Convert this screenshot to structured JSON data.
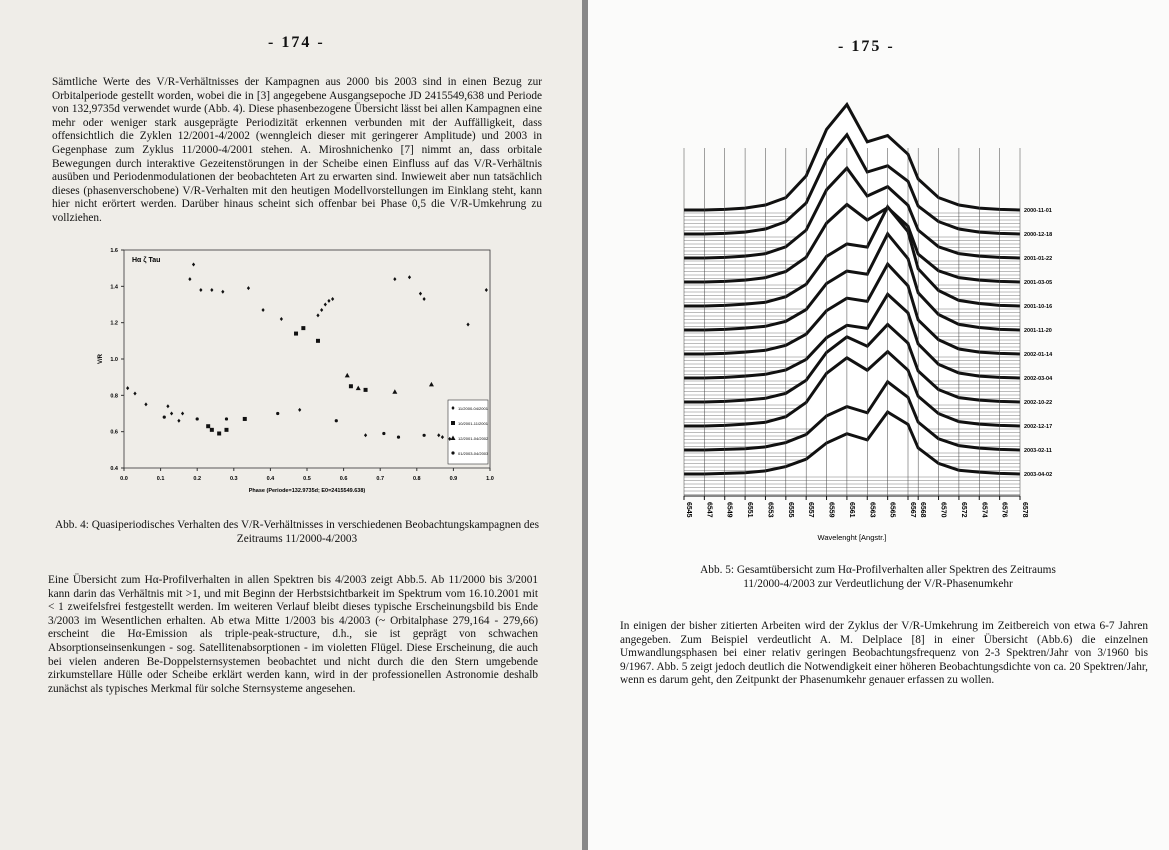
{
  "left": {
    "page_number": "- 174 -",
    "paragraph_1": "Sämtliche Werte des V/R-Verhältnisses der Kampagnen aus 2000 bis 2003 sind in einen Bezug zur Orbitalperiode gestellt worden, wobei die in [3] angegebene Ausgangsepoche JD 2415549,638 und Periode von 132,9735d verwendet wurde (Abb. 4). Diese phasenbezogene Übersicht lässt bei allen Kampagnen eine mehr oder weniger stark ausgeprägte Periodizität erkennen verbunden mit der Auffälligkeit, dass offensichtlich die Zyklen 12/2001-4/2002 (wenngleich dieser mit geringerer Amplitude) und 2003 in Gegenphase zum Zyklus 11/2000-4/2001 stehen. A. Miroshnichenko [7] nimmt an, dass orbitale Bewegungen durch interaktive Gezeitenstörungen in der Scheibe einen Einfluss auf das V/R-Verhältnis ausüben und Periodenmodulationen der beobachteten Art zu erwarten sind. Inwieweit aber nun tatsächlich dieses (phasenverschobene) V/R-Verhalten mit den heutigen Modellvorstellungen im Einklang steht, kann hier nicht erörtert werden. Darüber hinaus scheint sich offenbar bei Phase 0,5 die V/R-Umkehrung zu vollziehen.",
    "caption": "Abb. 4: Quasiperiodisches Verhalten des V/R-Verhältnisses in verschiedenen Beobachtungskampagnen des Zeitraums 11/2000-4/2003",
    "paragraph_2": "Eine Übersicht zum Hα-Profilverhalten in allen Spektren bis 4/2003 zeigt Abb.5. Ab 11/2000 bis 3/2001 kann darin das Verhältnis mit >1, und mit Beginn der Herbstsichtbarkeit im Spektrum vom 16.10.2001 mit < 1 zweifelsfrei festgestellt werden. Im weiteren Verlauf bleibt dieses typische Erscheinungsbild bis Ende 3/2003 im Wesentlichen erhalten. Ab etwa Mitte 1/2003 bis 4/2003 (~ Orbitalphase 279,164 - 279,66) erscheint die Hα-Emission als triple-peak-structure, d.h., sie ist geprägt von schwachen Absorptionseinsenkungen - sog. Satellitenabsorptionen - im violetten Flügel. Diese Erscheinung, die auch bei vielen anderen Be-Doppelsternsystemen beobachtet und nicht durch die den Stern umgebende zirkumstellare Hülle oder Scheibe erklärt werden kann, wird in der professionellen Astronomie deshalb zunächst als typisches Merkmal für solche Sternsysteme angesehen."
  },
  "right": {
    "page_number": "- 175 -",
    "caption": "Abb. 5: Gesamtübersicht zum Hα-Profilverhalten aller Spektren des Zeitraums 11/2000-4/2003 zur Verdeutlichung der V/R-Phasenumkehr",
    "paragraph": "In einigen der bisher zitierten Arbeiten wird der Zyklus der V/R-Umkehrung im Zeitbereich von etwa 6-7 Jahren angegeben. Zum Beispiel verdeutlicht A. M. Delplace [8] in einer Übersicht (Abb.6) die einzelnen Umwandlungsphasen bei einer relativ geringen Beobachtungsfrequenz von 2-3 Spektren/Jahr von 3/1960 bis 9/1967. Abb. 5 zeigt jedoch deutlich die Notwendigkeit einer höheren Beobachtungsdichte von ca. 20 Spektren/Jahr, wenn es darum geht, den Zeitpunkt der Phasenumkehr genauer erfassen zu wollen."
  },
  "chart_data": [
    {
      "type": "scatter",
      "title": "Hα ζ Tau",
      "y_label": "V/R",
      "x_label": "Phase (Periode=132.9735d; E0=2415549.638)",
      "xlim": [
        0,
        1
      ],
      "ylim": [
        0.4,
        1.6
      ],
      "xticks": [
        {
          "value": 0,
          "label": "0.0"
        },
        0.1,
        0.2,
        0.3,
        0.4,
        0.5,
        0.6,
        0.7,
        0.8,
        0.9,
        {
          "value": 1,
          "label": "1.0"
        }
      ],
      "yticks": [
        0.4,
        0.6,
        0.8,
        {
          "value": 1,
          "label": "1.0"
        },
        1.2,
        1.4,
        1.6
      ],
      "legend": "lower right",
      "series": [
        {
          "name": "11/2000-04/2001",
          "marker": "diamond",
          "color": "#111111",
          "x": [
            0.01,
            0.03,
            0.06,
            0.12,
            0.13,
            0.15,
            0.16,
            0.18,
            0.19,
            0.21,
            0.24,
            0.27,
            0.34,
            0.38,
            0.43,
            0.48,
            0.53,
            0.54,
            0.55,
            0.56,
            0.57,
            0.66,
            0.74,
            0.78,
            0.81,
            0.82,
            0.86,
            0.87,
            0.89,
            0.94,
            0.99
          ],
          "values": [
            0.84,
            0.81,
            0.75,
            0.74,
            0.7,
            0.66,
            0.7,
            1.44,
            1.52,
            1.38,
            1.38,
            1.37,
            1.39,
            1.27,
            1.22,
            0.72,
            1.24,
            1.27,
            1.3,
            1.32,
            1.33,
            0.58,
            1.44,
            1.45,
            1.36,
            1.33,
            0.58,
            0.57,
            0.56,
            1.19,
            1.38
          ]
        },
        {
          "name": "10/2001-11/2001",
          "marker": "square",
          "color": "#111111",
          "x": [
            0.23,
            0.24,
            0.26,
            0.28,
            0.33,
            0.47,
            0.49,
            0.53,
            0.62,
            0.66
          ],
          "values": [
            0.63,
            0.61,
            0.59,
            0.61,
            0.67,
            1.14,
            1.17,
            1.1,
            0.85,
            0.83
          ]
        },
        {
          "name": "12/2001-04/2002",
          "marker": "triangle",
          "color": "#111111",
          "x": [
            0.61,
            0.64,
            0.74,
            0.84
          ],
          "values": [
            0.91,
            0.84,
            0.82,
            0.86
          ]
        },
        {
          "name": "01/2003-04/2003",
          "marker": "circle",
          "color": "#111111",
          "x": [
            0.11,
            0.2,
            0.28,
            0.42,
            0.58,
            0.71,
            0.75,
            0.82
          ],
          "values": [
            0.68,
            0.67,
            0.67,
            0.7,
            0.66,
            0.59,
            0.57,
            0.58
          ]
        }
      ]
    },
    {
      "type": "waterfall",
      "x_label": "Wavelenght [Angstr.]",
      "x": [
        6545,
        6547,
        6549,
        6551,
        6553,
        6555,
        6557,
        6559,
        6561,
        6563,
        6565,
        6567,
        6568,
        6570,
        6572,
        6574,
        6576,
        6578
      ],
      "xlim": [
        6545,
        6578
      ],
      "xticks": [
        6545,
        6547,
        6549,
        6551,
        6553,
        6555,
        6557,
        6559,
        6561,
        6563,
        6565,
        6567,
        6568,
        6570,
        6572,
        6574,
        6576,
        6578
      ],
      "legend": "right",
      "series": [
        {
          "name": "2000-11-01",
          "color": "#111111",
          "values": [
            1.0,
            1.0,
            1.01,
            1.03,
            1.08,
            1.2,
            1.55,
            2.3,
            2.7,
            2.1,
            2.2,
            1.9,
            1.5,
            1.2,
            1.08,
            1.03,
            1.01,
            1.0
          ]
        },
        {
          "name": "2000-12-18",
          "color": "#111111",
          "values": [
            1.0,
            1.0,
            1.01,
            1.03,
            1.08,
            1.2,
            1.5,
            2.2,
            2.6,
            2.0,
            2.1,
            1.85,
            1.45,
            1.2,
            1.08,
            1.03,
            1.01,
            1.0
          ]
        },
        {
          "name": "2001-01-22",
          "color": "#111111",
          "values": [
            1.0,
            1.0,
            1.01,
            1.03,
            1.07,
            1.18,
            1.45,
            2.1,
            2.45,
            2.0,
            2.15,
            1.85,
            1.45,
            1.18,
            1.07,
            1.03,
            1.01,
            1.0
          ]
        },
        {
          "name": "2001-03-05",
          "color": "#111111",
          "values": [
            1.0,
            1.0,
            1.01,
            1.03,
            1.07,
            1.17,
            1.4,
            1.95,
            2.25,
            2.0,
            2.2,
            1.9,
            1.45,
            1.18,
            1.07,
            1.03,
            1.01,
            1.0
          ]
        },
        {
          "name": "2001-10-16",
          "color": "#111111",
          "values": [
            1.0,
            1.0,
            1.01,
            1.03,
            1.06,
            1.15,
            1.35,
            1.8,
            2.0,
            1.95,
            2.6,
            2.2,
            1.6,
            1.25,
            1.09,
            1.04,
            1.01,
            1.0
          ]
        },
        {
          "name": "2001-11-20",
          "color": "#111111",
          "values": [
            1.0,
            1.0,
            1.01,
            1.03,
            1.06,
            1.14,
            1.33,
            1.75,
            1.95,
            1.9,
            2.55,
            2.15,
            1.6,
            1.25,
            1.09,
            1.04,
            1.01,
            1.0
          ]
        },
        {
          "name": "2002-01-14",
          "color": "#111111",
          "values": [
            1.0,
            1.0,
            1.01,
            1.03,
            1.06,
            1.14,
            1.32,
            1.7,
            1.9,
            1.85,
            2.45,
            2.1,
            1.55,
            1.23,
            1.08,
            1.03,
            1.01,
            1.0
          ]
        },
        {
          "name": "2002-03-04",
          "color": "#111111",
          "values": [
            1.0,
            1.0,
            1.01,
            1.03,
            1.06,
            1.13,
            1.3,
            1.65,
            1.85,
            1.8,
            2.35,
            2.05,
            1.55,
            1.22,
            1.08,
            1.03,
            1.01,
            1.0
          ]
        },
        {
          "name": "2002-10-22",
          "color": "#111111",
          "values": [
            1.0,
            1.0,
            1.01,
            1.03,
            1.06,
            1.14,
            1.35,
            1.8,
            2.05,
            1.9,
            2.25,
            1.95,
            1.5,
            1.2,
            1.07,
            1.03,
            1.01,
            1.0
          ]
        },
        {
          "name": "2002-12-17",
          "color": "#111111",
          "values": [
            1.0,
            1.0,
            1.01,
            1.03,
            1.06,
            1.15,
            1.38,
            1.85,
            2.1,
            1.9,
            2.2,
            1.9,
            1.48,
            1.2,
            1.07,
            1.03,
            1.01,
            1.0
          ]
        },
        {
          "name": "2003-02-11",
          "color": "#111111",
          "values": [
            1.0,
            1.0,
            1.01,
            1.02,
            1.05,
            1.12,
            1.25,
            1.55,
            1.7,
            1.6,
            2.1,
            1.85,
            1.45,
            1.18,
            1.07,
            1.03,
            1.01,
            1.0
          ]
        },
        {
          "name": "2003-04-02",
          "color": "#111111",
          "values": [
            1.0,
            1.0,
            1.01,
            1.02,
            1.05,
            1.12,
            1.24,
            1.5,
            1.65,
            1.55,
            2.0,
            1.8,
            1.42,
            1.17,
            1.06,
            1.03,
            1.01,
            1.0
          ]
        }
      ]
    }
  ]
}
